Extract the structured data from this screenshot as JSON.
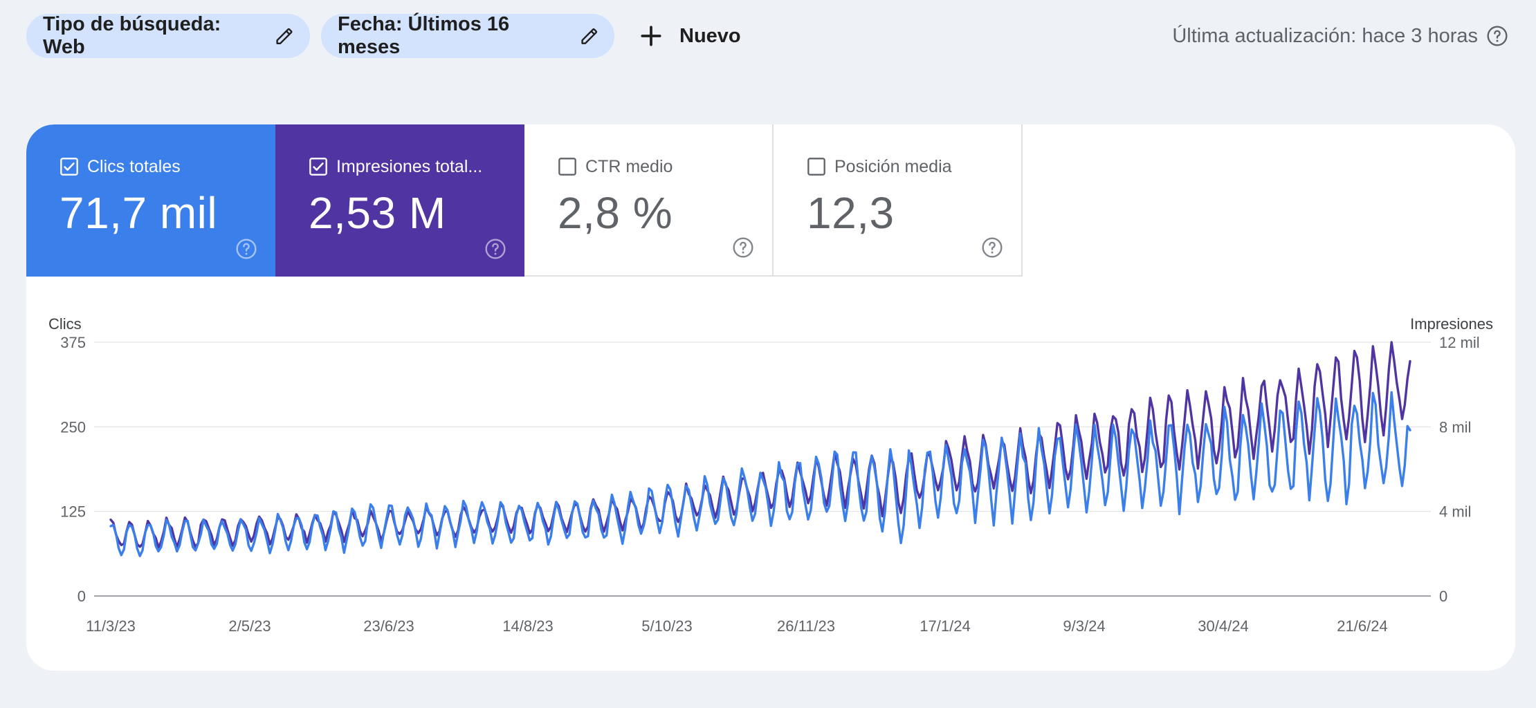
{
  "filters": {
    "search_type": "Tipo de búsqueda: Web",
    "date": "Fecha: Últimos 16 meses",
    "new_label": "Nuevo"
  },
  "last_update": "Última actualización: hace 3 horas",
  "metrics": [
    {
      "label": "Clics totales",
      "value": "71,7 mil",
      "checked": true,
      "color": "#3b7fea"
    },
    {
      "label": "Impresiones total...",
      "value": "2,53 M",
      "checked": true,
      "color": "#5034a1"
    },
    {
      "label": "CTR medio",
      "value": "2,8 %",
      "checked": false,
      "color": "#ffffff"
    },
    {
      "label": "Posición media",
      "value": "12,3",
      "checked": false,
      "color": "#ffffff"
    }
  ],
  "chart_data": {
    "type": "line",
    "left_axis_title": "Clics",
    "right_axis_title": "Impresiones",
    "left_ticks": [
      "0",
      "125",
      "250",
      "375"
    ],
    "right_ticks": [
      "0",
      "4 mil",
      "8 mil",
      "12 mil"
    ],
    "ylim_left": [
      0,
      375
    ],
    "ylim_right": [
      0,
      12000
    ],
    "x_tick_labels": [
      "11/3/23",
      "2/5/23",
      "23/6/23",
      "14/8/23",
      "5/10/23",
      "26/11/23",
      "17/1/24",
      "9/3/24",
      "30/4/24",
      "21/6/24"
    ],
    "x_range": [
      "2023-03-11",
      "2024-07-12"
    ],
    "grid": true,
    "series": [
      {
        "name": "Impresiones",
        "axis": "right",
        "color": "#5034a1",
        "weekly_avg": [
          2900,
          2850,
          2950,
          3000,
          3000,
          3050,
          3050,
          3100,
          3100,
          3150,
          3200,
          3250,
          3300,
          3350,
          3400,
          3450,
          3450,
          3500,
          3500,
          3550,
          3550,
          3600,
          3600,
          3650,
          3700,
          3750,
          3800,
          3850,
          3950,
          4100,
          4250,
          4400,
          4550,
          4700,
          4900,
          5000,
          5200,
          5300,
          5400,
          5500,
          5450,
          5300,
          5300,
          5600,
          5900,
          6000,
          6100,
          6200,
          6300,
          6400,
          6600,
          6800,
          7000,
          7200,
          7300,
          7400,
          7500,
          7700,
          7900,
          8000,
          8200,
          8300,
          8500,
          8700,
          8900,
          9100,
          9300,
          9500,
          9700,
          9900
        ],
        "weekly_amplitude": [
          600,
          650,
          600,
          600,
          650,
          600,
          600,
          650,
          600,
          600,
          650,
          600,
          650,
          600,
          650,
          650,
          600,
          650,
          600,
          650,
          600,
          650,
          600,
          650,
          650,
          700,
          650,
          700,
          700,
          700,
          700,
          750,
          750,
          800,
          800,
          900,
          900,
          1000,
          1050,
          1100,
          1200,
          1300,
          1400,
          1200,
          1100,
          1100,
          1200,
          1200,
          1300,
          1300,
          1350,
          1400,
          1400,
          1450,
          1500,
          1500,
          1550,
          1600,
          1600,
          1650,
          1700,
          1700,
          1750,
          1800,
          1800,
          1850,
          1850,
          1900,
          1900,
          1900
        ],
        "last_value": 11100
      },
      {
        "name": "Clics",
        "axis": "left",
        "color": "#3b7fea",
        "weekly_avg": [
          85,
          84,
          86,
          88,
          88,
          89,
          89,
          90,
          91,
          92,
          94,
          96,
          98,
          100,
          104,
          106,
          105,
          107,
          106,
          108,
          107,
          108,
          106,
          108,
          108,
          110,
          112,
          114,
          118,
          124,
          128,
          132,
          136,
          140,
          146,
          148,
          152,
          158,
          162,
          164,
          160,
          150,
          145,
          160,
          168,
          170,
          168,
          170,
          172,
          176,
          180,
          183,
          186,
          190,
          188,
          190,
          193,
          195,
          198,
          200,
          203,
          205,
          207,
          210,
          212,
          214,
          216,
          218,
          220,
          222
        ],
        "weekly_amplitude": [
          22,
          24,
          22,
          24,
          24,
          24,
          22,
          24,
          24,
          26,
          26,
          26,
          28,
          30,
          30,
          30,
          28,
          30,
          28,
          30,
          28,
          30,
          28,
          30,
          28,
          30,
          30,
          32,
          32,
          34,
          34,
          36,
          36,
          38,
          40,
          42,
          44,
          46,
          48,
          50,
          55,
          60,
          62,
          55,
          50,
          50,
          52,
          54,
          55,
          56,
          57,
          58,
          58,
          60,
          60,
          60,
          60,
          62,
          62,
          62,
          64,
          64,
          64,
          65,
          65,
          66,
          66,
          66,
          66,
          66
        ],
        "last_value": 245
      }
    ]
  }
}
